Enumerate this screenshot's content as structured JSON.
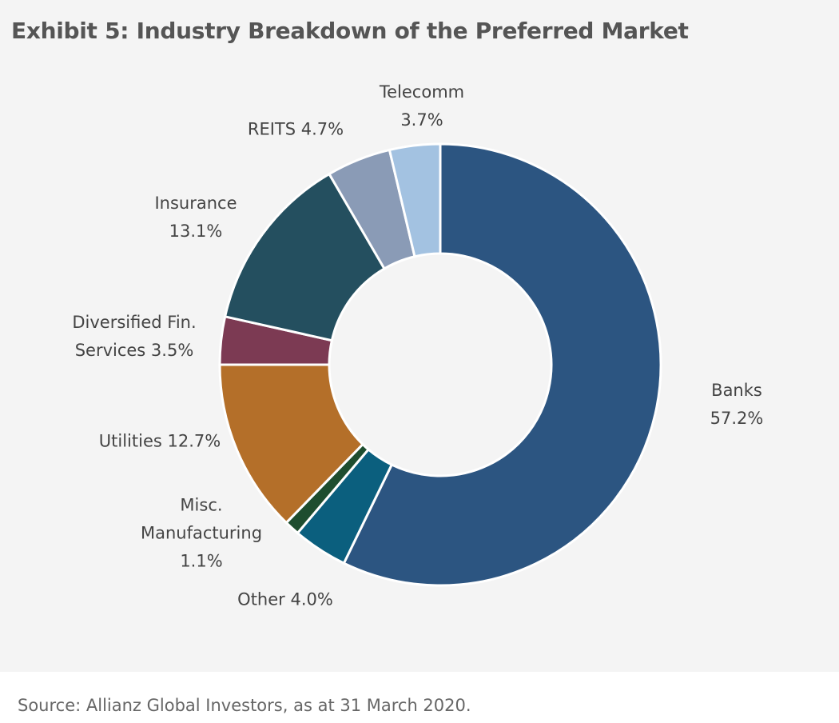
{
  "title": "Exhibit 5: Industry Breakdown of the Preferred Market",
  "source": "Source: Allianz Global Investors, as at 31 March 2020.",
  "chart_data": {
    "type": "pie",
    "variant": "donut",
    "title": "Exhibit 5: Industry Breakdown of the Preferred Market",
    "start": "12 o'clock, clockwise",
    "slices": [
      {
        "name": "Banks",
        "value": 57.2,
        "label": "Banks 57.2%",
        "color": "#2c5581"
      },
      {
        "name": "Other",
        "value": 4.0,
        "label": "Other 4.0%",
        "color": "#0b5f7e"
      },
      {
        "name": "Misc. Manufacturing",
        "value": 1.1,
        "label": "Misc.\nManufacturing\n1.1%",
        "color": "#1e4d2f"
      },
      {
        "name": "Utilities",
        "value": 12.7,
        "label": "Utilities 12.7%",
        "color": "#b46f29"
      },
      {
        "name": "Diversified Fin. Services",
        "value": 3.5,
        "label": "Diversified Fin.\nServices 3.5%",
        "color": "#7c3a53"
      },
      {
        "name": "Insurance",
        "value": 13.1,
        "label": "Insurance\n13.1%",
        "color": "#244f5f"
      },
      {
        "name": "REITS",
        "value": 4.7,
        "label": "REITS 4.7%",
        "color": "#8a9bb6"
      },
      {
        "name": "Telecomm",
        "value": 3.7,
        "label": "Telecomm\n3.7%",
        "color": "#a3c2e1"
      }
    ]
  }
}
